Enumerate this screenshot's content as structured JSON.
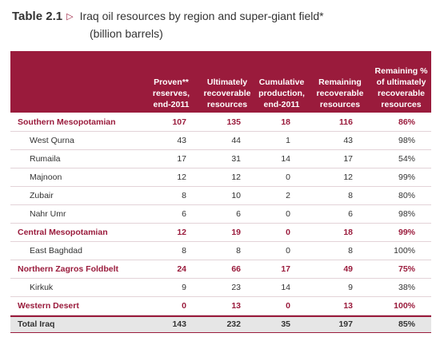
{
  "table": {
    "number": "Table 2.1",
    "arrow": "▷",
    "title": "Iraq oil resources by region and super-giant field*",
    "subtitle": "(billion barrels)",
    "headers": [
      "Proven**\nreserves,\nend-2011",
      "Ultimately\nrecoverable\nresources",
      "Cumulative\nproduction,\nend-2011",
      "Remaining\nrecoverable\nresources",
      "Remaining %\nof ultimately\nrecoverable\nresources"
    ],
    "rows": [
      {
        "label": "Southern Mesopotamian",
        "kind": "region",
        "values": [
          "107",
          "135",
          "18",
          "116",
          "86%"
        ]
      },
      {
        "label": "West Qurna",
        "kind": "field",
        "values": [
          "43",
          "44",
          "1",
          "43",
          "98%"
        ]
      },
      {
        "label": "Rumaila",
        "kind": "field",
        "values": [
          "17",
          "31",
          "14",
          "17",
          "54%"
        ]
      },
      {
        "label": "Majnoon",
        "kind": "field",
        "values": [
          "12",
          "12",
          "0",
          "12",
          "99%"
        ]
      },
      {
        "label": "Zubair",
        "kind": "field",
        "values": [
          "8",
          "10",
          "2",
          "8",
          "80%"
        ]
      },
      {
        "label": "Nahr Umr",
        "kind": "field",
        "values": [
          "6",
          "6",
          "0",
          "6",
          "98%"
        ]
      },
      {
        "label": "Central Mesopotamian",
        "kind": "region",
        "values": [
          "12",
          "19",
          "0",
          "18",
          "99%"
        ]
      },
      {
        "label": "East Baghdad",
        "kind": "field",
        "values": [
          "8",
          "8",
          "0",
          "8",
          "100%"
        ]
      },
      {
        "label": "Northern Zagros Foldbelt",
        "kind": "region",
        "values": [
          "24",
          "66",
          "17",
          "49",
          "75%"
        ]
      },
      {
        "label": "Kirkuk",
        "kind": "field",
        "values": [
          "9",
          "23",
          "14",
          "9",
          "38%"
        ]
      },
      {
        "label": "Western Desert",
        "kind": "region",
        "values": [
          "0",
          "13",
          "0",
          "13",
          "100%"
        ]
      }
    ],
    "total": {
      "label": "Total Iraq",
      "values": [
        "143",
        "232",
        "35",
        "197",
        "85%"
      ]
    }
  },
  "colors": {
    "accent": "#9a1b3c",
    "total_bg": "#e6e6e6",
    "text": "#333333"
  }
}
